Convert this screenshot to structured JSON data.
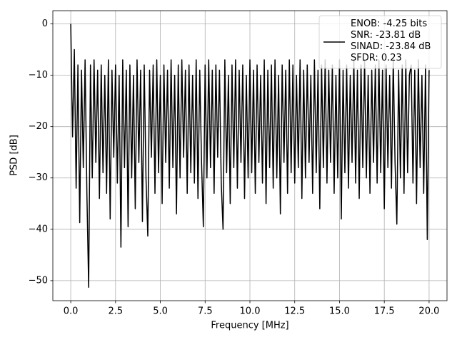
{
  "chart_data": {
    "type": "line",
    "xlabel": "Frequency [MHz]",
    "ylabel": "PSD [dB]",
    "x": [
      0,
      0.1,
      0.2,
      0.3,
      0.4,
      0.5,
      0.6,
      0.7,
      0.8,
      0.9,
      1,
      1.1,
      1.2,
      1.3,
      1.4,
      1.5,
      1.6,
      1.7,
      1.8,
      1.9,
      2,
      2.1,
      2.2,
      2.3,
      2.4,
      2.5,
      2.6,
      2.7,
      2.8,
      2.9,
      3,
      3.1,
      3.2,
      3.3,
      3.4,
      3.5,
      3.6,
      3.7,
      3.8,
      3.9,
      4,
      4.1,
      4.2,
      4.3,
      4.4,
      4.5,
      4.6,
      4.7,
      4.8,
      4.9,
      5,
      5.1,
      5.2,
      5.3,
      5.4,
      5.5,
      5.6,
      5.7,
      5.8,
      5.9,
      6,
      6.1,
      6.2,
      6.3,
      6.4,
      6.5,
      6.6,
      6.7,
      6.8,
      6.9,
      7,
      7.1,
      7.2,
      7.3,
      7.4,
      7.5,
      7.6,
      7.7,
      7.8,
      7.9,
      8,
      8.1,
      8.2,
      8.3,
      8.4,
      8.5,
      8.6,
      8.7,
      8.8,
      8.9,
      9,
      9.1,
      9.2,
      9.3,
      9.4,
      9.5,
      9.6,
      9.7,
      9.8,
      9.9,
      10,
      10.1,
      10.2,
      10.3,
      10.4,
      10.5,
      10.6,
      10.7,
      10.8,
      10.9,
      11,
      11.1,
      11.2,
      11.3,
      11.4,
      11.5,
      11.6,
      11.7,
      11.8,
      11.9,
      12,
      12.1,
      12.2,
      12.3,
      12.4,
      12.5,
      12.6,
      12.7,
      12.8,
      12.9,
      13,
      13.1,
      13.2,
      13.3,
      13.4,
      13.5,
      13.6,
      13.7,
      13.8,
      13.9,
      14,
      14.1,
      14.2,
      14.3,
      14.4,
      14.5,
      14.6,
      14.7,
      14.8,
      14.9,
      15,
      15.1,
      15.2,
      15.3,
      15.4,
      15.5,
      15.6,
      15.7,
      15.8,
      15.9,
      16,
      16.1,
      16.2,
      16.3,
      16.4,
      16.5,
      16.6,
      16.7,
      16.8,
      16.9,
      17,
      17.1,
      17.2,
      17.3,
      17.4,
      17.5,
      17.6,
      17.7,
      17.8,
      17.9,
      18,
      18.1,
      18.2,
      18.3,
      18.4,
      18.5,
      18.6,
      18.7,
      18.8,
      18.9,
      19,
      19.1,
      19.2,
      19.3,
      19.4,
      19.5,
      19.6,
      19.7,
      19.8,
      19.9,
      20
    ],
    "series": [
      {
        "name": "ENOB: -4.25 bits\nSNR: -23.81 dB\nSINAD: -23.84 dB\nSFDR: 0.23",
        "color": "#000000",
        "values": [
          0,
          -22,
          -5,
          -32,
          -8,
          -38.7,
          -9,
          -28,
          -7,
          -33,
          -51.3,
          -8,
          -30,
          -7,
          -27,
          -9,
          -34,
          -8,
          -29,
          -10,
          -33,
          -7,
          -38,
          -9,
          -26,
          -8,
          -31,
          -10,
          -43.5,
          -7,
          -28,
          -9,
          -39.5,
          -8,
          -30,
          -10,
          -36,
          -7,
          -27,
          -9,
          -38.5,
          -8,
          -30,
          -41.3,
          -9,
          -26,
          -8,
          -33,
          -7,
          -29,
          -10,
          -35,
          -8,
          -27,
          -9,
          -32,
          -7,
          -28,
          -10,
          -37,
          -8,
          -30,
          -7,
          -26,
          -9,
          -33,
          -8,
          -29,
          -10,
          -31,
          -7,
          -34,
          -9,
          -27,
          -39.5,
          -8,
          -30,
          -7,
          -28,
          -9,
          -33,
          -8,
          -26,
          -9,
          -31,
          -40,
          -7,
          -29,
          -10,
          -35,
          -8,
          -28,
          -7,
          -32,
          -9,
          -27,
          -8,
          -34,
          -10,
          -30,
          -7,
          -29,
          -9,
          -33,
          -8,
          -27,
          -10,
          -31,
          -7,
          -35,
          -9,
          -28,
          -8,
          -32,
          -7,
          -30,
          -10,
          -37,
          -8,
          -27,
          -9,
          -33,
          -7,
          -29,
          -8,
          -31,
          -10,
          -28,
          -7,
          -34,
          -9,
          -30,
          -8,
          -27,
          -10,
          -33,
          -7,
          -29,
          -9,
          -36,
          -8,
          -28,
          -7,
          -31,
          -9,
          -27,
          -8,
          -33,
          -10,
          -30,
          -7,
          -38,
          -9,
          -29,
          -8,
          -32,
          -10,
          -27,
          -7,
          -31,
          -9,
          -34,
          -8,
          -28,
          -7,
          -30,
          -10,
          -33,
          -9,
          -27,
          -8,
          -31,
          -7,
          -29,
          -9,
          -36,
          -8,
          -28,
          -10,
          -32,
          -7,
          -27,
          -39,
          -9,
          -30,
          -8,
          -33,
          -7,
          -29,
          -10,
          -8,
          -31,
          -9,
          -35,
          -7,
          -28,
          -10,
          -33,
          -8,
          -42,
          -9
        ]
      }
    ],
    "xlim": [
      -1,
      21
    ],
    "xticks": [
      {
        "value": 0,
        "label": "0.0"
      },
      2.5,
      {
        "value": 5,
        "label": "5.0"
      },
      7.5,
      {
        "value": 10,
        "label": "10.0"
      },
      12.5,
      {
        "value": 15,
        "label": "15.0"
      },
      17.5,
      {
        "value": 20,
        "label": "20.0"
      }
    ],
    "ylim": [
      -53.9,
      2.57
    ],
    "yticks": [
      {
        "value": -50,
        "label": "−50"
      },
      {
        "value": -40,
        "label": "−40"
      },
      {
        "value": -30,
        "label": "−30"
      },
      {
        "value": -20,
        "label": "−20"
      },
      {
        "value": -10,
        "label": "−10"
      },
      0
    ],
    "grid": true,
    "legend": "upper right"
  }
}
